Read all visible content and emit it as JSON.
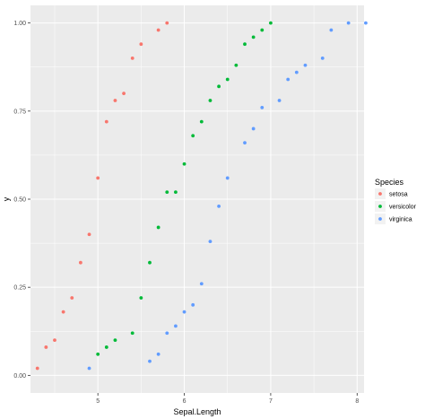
{
  "chart_data": {
    "type": "scatter",
    "title": "",
    "xlabel": "Sepal.Length",
    "ylabel": "y",
    "xlim": [
      4.22,
      8.08
    ],
    "ylim": [
      -0.05,
      1.05
    ],
    "x_ticks": [
      5,
      6,
      7,
      8
    ],
    "y_ticks": [
      0.0,
      0.25,
      0.5,
      0.75,
      1.0
    ],
    "x_tick_labels": [
      "5",
      "6",
      "7",
      "8"
    ],
    "y_tick_labels": [
      "0.00",
      "0.25",
      "0.50",
      "0.75",
      "1.00"
    ],
    "grid": true,
    "legend": {
      "title": "Species",
      "position": "right"
    },
    "series": [
      {
        "name": "setosa",
        "color": "#F8766D",
        "points": [
          [
            4.3,
            0.02
          ],
          [
            4.4,
            0.08
          ],
          [
            4.5,
            0.1
          ],
          [
            4.6,
            0.18
          ],
          [
            4.7,
            0.22
          ],
          [
            4.8,
            0.32
          ],
          [
            4.9,
            0.4
          ],
          [
            5.0,
            0.56
          ],
          [
            5.1,
            0.72
          ],
          [
            5.2,
            0.78
          ],
          [
            5.3,
            0.8
          ],
          [
            5.4,
            0.9
          ],
          [
            5.5,
            0.94
          ],
          [
            5.7,
            0.98
          ],
          [
            5.8,
            1.0
          ]
        ]
      },
      {
        "name": "versicolor",
        "color": "#00BA38",
        "points": [
          [
            5.0,
            0.06
          ],
          [
            5.1,
            0.08
          ],
          [
            5.2,
            0.1
          ],
          [
            5.4,
            0.12
          ],
          [
            5.5,
            0.22
          ],
          [
            5.6,
            0.32
          ],
          [
            5.7,
            0.42
          ],
          [
            5.8,
            0.52
          ],
          [
            5.9,
            0.52
          ],
          [
            6.0,
            0.6
          ],
          [
            6.1,
            0.68
          ],
          [
            6.2,
            0.72
          ],
          [
            6.3,
            0.78
          ],
          [
            6.4,
            0.82
          ],
          [
            6.5,
            0.84
          ],
          [
            6.6,
            0.88
          ],
          [
            6.7,
            0.94
          ],
          [
            6.8,
            0.96
          ],
          [
            6.9,
            0.98
          ],
          [
            7.0,
            1.0
          ]
        ]
      },
      {
        "name": "virginica",
        "color": "#619CFF",
        "points": [
          [
            4.9,
            0.02
          ],
          [
            5.6,
            0.04
          ],
          [
            5.7,
            0.06
          ],
          [
            5.8,
            0.12
          ],
          [
            5.9,
            0.14
          ],
          [
            6.0,
            0.18
          ],
          [
            6.1,
            0.2
          ],
          [
            6.2,
            0.26
          ],
          [
            6.3,
            0.38
          ],
          [
            6.4,
            0.48
          ],
          [
            6.5,
            0.56
          ],
          [
            6.7,
            0.66
          ],
          [
            6.8,
            0.7
          ],
          [
            6.9,
            0.76
          ],
          [
            7.1,
            0.78
          ],
          [
            7.2,
            0.84
          ],
          [
            7.3,
            0.86
          ],
          [
            7.4,
            0.88
          ],
          [
            7.6,
            0.9
          ],
          [
            7.7,
            0.98
          ],
          [
            7.9,
            1.0
          ],
          [
            8.1,
            1.0
          ]
        ]
      }
    ]
  }
}
